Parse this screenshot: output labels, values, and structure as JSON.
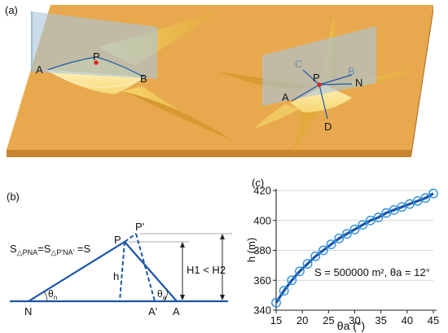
{
  "panel_a": {
    "label": "(a)",
    "left_points": {
      "A": "A",
      "P": "P",
      "B": "B"
    },
    "right_points": {
      "C": "C",
      "B": "B",
      "N": "N",
      "P": "P",
      "A": "A",
      "D": "D"
    }
  },
  "panel_b": {
    "label": "(b)",
    "equation_main": "S",
    "equation_sub1": "△PNA",
    "equation_mid": "=S",
    "equation_sub2": "△P'NA'",
    "equation_end": " =S",
    "point_P": "P",
    "point_P_prime": "P'",
    "point_N": "N",
    "point_A": "A",
    "point_A_prime": "A'",
    "label_h": "h",
    "label_theta_n": "θ",
    "label_theta_n_sub": "n",
    "label_theta_a": "θ",
    "label_theta_a_sub": "a",
    "label_H": "H1 < H2"
  },
  "panel_c": {
    "label": "(c)",
    "annotation": "S = 500000 m², θa = 12°",
    "colors": {
      "line": "#1a55a8",
      "marker": "#2f8fd8"
    }
  },
  "chart_data": {
    "type": "line",
    "xlabel": "θa (°)",
    "ylabel": "h (m)",
    "xlim": [
      15,
      45
    ],
    "ylim": [
      340,
      420
    ],
    "xticks": [
      15,
      20,
      25,
      30,
      35,
      40,
      45
    ],
    "yticks": [
      340,
      360,
      380,
      400,
      420
    ],
    "grid": "horizontal",
    "x": [
      15,
      16.5,
      18,
      19.5,
      21,
      22.5,
      24,
      25.5,
      27,
      28.5,
      30,
      31.5,
      33,
      34.5,
      36,
      37.5,
      39,
      40.5,
      42,
      43.5,
      45
    ],
    "y": [
      345,
      353,
      360,
      366,
      371,
      376,
      380,
      384,
      388,
      391,
      394,
      397,
      400,
      402,
      405,
      407,
      409,
      411,
      413,
      415,
      418
    ],
    "annotation": "S = 500000 m², θa = 12°"
  }
}
